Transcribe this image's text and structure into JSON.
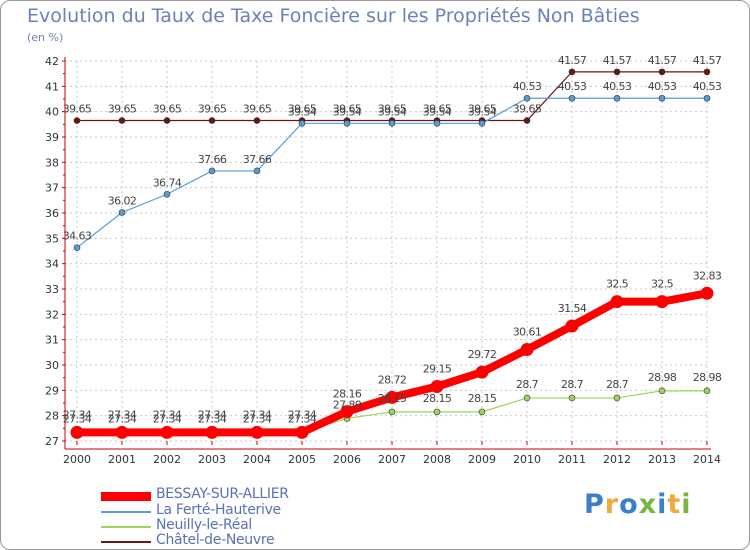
{
  "chart_data": {
    "type": "line",
    "title": "Evolution du Taux de Taxe Foncière sur les Propriétés Non Bâties",
    "ylabel": "(en %)",
    "xlabel": "",
    "ylim": [
      27,
      42
    ],
    "yticks": [
      27,
      28,
      29,
      30,
      31,
      32,
      33,
      34,
      35,
      36,
      37,
      38,
      39,
      40,
      41,
      42
    ],
    "categories": [
      "2000",
      "2001",
      "2002",
      "2003",
      "2004",
      "2005",
      "2006",
      "2007",
      "2008",
      "2009",
      "2010",
      "2011",
      "2012",
      "2013",
      "2014"
    ],
    "series": [
      {
        "name": "Châtel-de-Neuvre",
        "color": "#6b1515",
        "values": [
          39.65,
          39.65,
          39.65,
          39.65,
          39.65,
          39.65,
          39.65,
          39.65,
          39.65,
          39.65,
          39.65,
          41.57,
          41.57,
          41.57,
          41.57
        ],
        "labels": [
          "39.65",
          "39.65",
          "39.65",
          "39.65",
          "39.65",
          "39.65",
          "39.65",
          "39.65",
          "39.65",
          "39.65",
          "39.65",
          "41.57",
          "41.57",
          "41.57",
          "41.57"
        ]
      },
      {
        "name": "La Ferté-Hauterive",
        "color": "#5b9bd5",
        "values": [
          34.63,
          36.02,
          36.74,
          37.66,
          37.66,
          39.54,
          39.54,
          39.54,
          39.54,
          39.54,
          40.53,
          40.53,
          40.53,
          40.53,
          40.53
        ],
        "labels": [
          "34.63",
          "36.02",
          "36.74",
          "37.66",
          "37.66",
          "39.54",
          "39.54",
          "39.54",
          "39.54",
          "39.54",
          "40.53",
          "40.53",
          "40.53",
          "40.53",
          "40.53"
        ]
      },
      {
        "name": "Neuilly-le-Réal",
        "color": "#9dd45a",
        "values": [
          27.34,
          27.34,
          27.34,
          27.34,
          27.34,
          27.34,
          27.89,
          28.15,
          28.15,
          28.15,
          28.7,
          28.7,
          28.7,
          28.98,
          28.98
        ],
        "labels": [
          "27.34",
          "27.34",
          "27.34",
          "27.34",
          "27.34",
          "27.34",
          "27.89",
          "28.15",
          "28.15",
          "28.15",
          "28.7",
          "28.7",
          "28.7",
          "28.98",
          "28.98"
        ]
      },
      {
        "name": "BESSAY-SUR-ALLIER",
        "color": "#ff0000",
        "values": [
          27.34,
          27.34,
          27.34,
          27.34,
          27.34,
          27.34,
          28.16,
          28.72,
          29.15,
          29.72,
          30.61,
          31.54,
          32.5,
          32.5,
          32.83
        ],
        "labels": [
          "27.34",
          "27.34",
          "27.34",
          "27.34",
          "27.34",
          "27.34",
          "28.16",
          "28.72",
          "29.15",
          "29.72",
          "30.61",
          "31.54",
          "32.5",
          "32.5",
          "32.83"
        ]
      }
    ],
    "legend": [
      {
        "name": "BESSAY-SUR-ALLIER",
        "color": "#ff0000"
      },
      {
        "name": "La Ferté-Hauterive",
        "color": "#5b9bd5"
      },
      {
        "name": "Neuilly-le-Réal",
        "color": "#9dd45a"
      },
      {
        "name": "Châtel-de-Neuvre",
        "color": "#6b1515"
      }
    ]
  },
  "logo": {
    "text": "Proxiti"
  }
}
